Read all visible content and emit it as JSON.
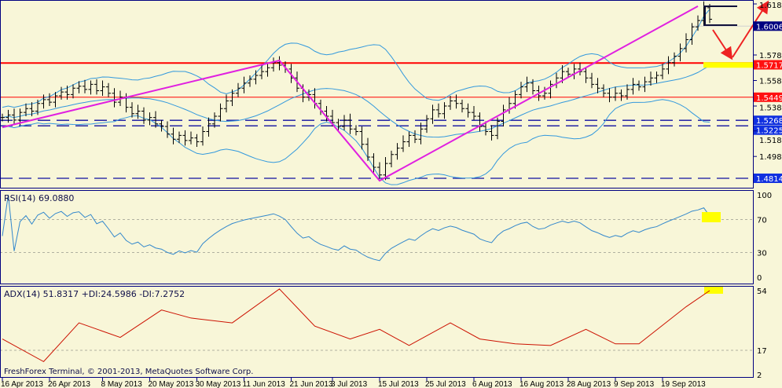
{
  "colors": {
    "background": "#f8f6d8",
    "frame": "#000080",
    "bars": "#000000",
    "bollinger": "#3399dd",
    "trendline": "#e020e0",
    "support_red": "#ff0000",
    "dashed_blue": "#1010a0",
    "rsi": "#3388cc",
    "adx": "#cc1100",
    "highlight": "#ffff00",
    "arrow": "#ee2222"
  },
  "footer": {
    "copyright": "FreshForex Terminal, © 2001-2013, MetaQuotes Software Corp."
  },
  "chart_data": [
    {
      "type": "ohlc",
      "price_axis": {
        "ticks": [
          "1.6180",
          "1.5780",
          "1.5580",
          "1.5380",
          "1.5185",
          "1.4985"
        ],
        "range": [
          1.477,
          1.621
        ]
      },
      "x_axis": {
        "ticks": [
          "16 Apr 2013",
          "26 Apr 2013",
          "8 May 2013",
          "20 May 2013",
          "30 May 2013",
          "11 Jun 2013",
          "21 Jun 2013",
          "3 Jul 2013",
          "15 Jul 2013",
          "25 Jul 2013",
          "6 Aug 2013",
          "16 Aug 2013",
          "28 Aug 2013",
          "9 Sep 2013",
          "19 Sep 2013"
        ],
        "tick_bar_index": [
          0,
          8,
          17,
          25,
          33,
          41,
          49,
          56,
          64,
          72,
          80,
          88,
          96,
          104,
          112
        ]
      },
      "closes": [
        1.529,
        1.531,
        1.527,
        1.533,
        1.536,
        1.534,
        1.54,
        1.543,
        1.541,
        1.546,
        1.549,
        1.547,
        1.552,
        1.5535,
        1.551,
        1.555,
        1.55,
        1.553,
        1.548,
        1.541,
        1.545,
        1.537,
        1.532,
        1.534,
        1.527,
        1.529,
        1.524,
        1.522,
        1.516,
        1.512,
        1.515,
        1.511,
        1.513,
        1.51,
        1.518,
        1.524,
        1.53,
        1.536,
        1.542,
        1.548,
        1.552,
        1.556,
        1.559,
        1.562,
        1.565,
        1.568,
        1.572,
        1.57,
        1.567,
        1.56,
        1.552,
        1.545,
        1.547,
        1.54,
        1.534,
        1.53,
        1.525,
        1.522,
        1.527,
        1.52,
        1.518,
        1.508,
        1.498,
        1.49,
        1.484,
        1.493,
        1.5,
        1.505,
        1.51,
        1.515,
        1.512,
        1.52,
        1.528,
        1.535,
        1.532,
        1.538,
        1.542,
        1.54,
        1.536,
        1.533,
        1.53,
        1.522,
        1.518,
        1.515,
        1.526,
        1.535,
        1.54,
        1.547,
        1.553,
        1.556,
        1.55,
        1.546,
        1.548,
        1.555,
        1.56,
        1.565,
        1.563,
        1.567,
        1.565,
        1.56,
        1.555,
        1.552,
        1.548,
        1.545,
        1.548,
        1.546,
        1.551,
        1.555,
        1.553,
        1.557,
        1.56,
        1.562,
        1.567,
        1.572,
        1.577,
        1.583,
        1.59,
        1.6,
        1.605,
        1.615,
        1.606
      ],
      "indicators": [
        "Bollinger Bands"
      ],
      "levels": [
        {
          "price": 1.6006,
          "label": "1.6006",
          "style": "badge",
          "color": "#000080"
        },
        {
          "price": 1.5717,
          "label": "1.5717",
          "style": "solid-thick",
          "color": "#ff0000"
        },
        {
          "price": 1.5449,
          "label": "1.5449",
          "style": "solid",
          "color": "#ff0000"
        },
        {
          "price": 1.5268,
          "label": "1.5268",
          "style": "dashed",
          "color": "#1010a0"
        },
        {
          "price": 1.5225,
          "label": "1.5225",
          "style": "dashed",
          "color": "#1010a0"
        },
        {
          "price": 1.4814,
          "label": "1.4814",
          "style": "dashed",
          "color": "#1010a0"
        }
      ],
      "trendline": [
        [
          0,
          1.5214
        ],
        [
          47,
          1.5737
        ],
        [
          64,
          1.4795
        ],
        [
          118,
          1.6162
        ]
      ]
    },
    {
      "type": "line",
      "title": "RSI(14) 69.0880",
      "yticks": [
        "100",
        "70",
        "30",
        "0"
      ],
      "levels": [
        70,
        30
      ],
      "ylim": [
        0,
        100
      ]
    },
    {
      "type": "line",
      "title": "ADX(14) 51.8317 +DI:24.5986 -DI:7.2752",
      "yticks": [
        "54",
        "17",
        "2"
      ],
      "levels": [
        17
      ],
      "adx_points": [
        [
          0,
          24
        ],
        [
          7,
          10
        ],
        [
          13,
          34
        ],
        [
          20,
          25
        ],
        [
          27,
          42
        ],
        [
          32,
          37
        ],
        [
          39,
          34
        ],
        [
          47,
          55
        ],
        [
          53,
          32
        ],
        [
          59,
          24
        ],
        [
          64,
          30
        ],
        [
          69,
          20
        ],
        [
          76,
          34
        ],
        [
          81,
          24
        ],
        [
          87,
          21
        ],
        [
          93,
          20
        ],
        [
          99,
          30
        ],
        [
          104,
          21
        ],
        [
          108,
          21
        ],
        [
          116,
          44
        ],
        [
          120,
          54
        ]
      ]
    }
  ]
}
